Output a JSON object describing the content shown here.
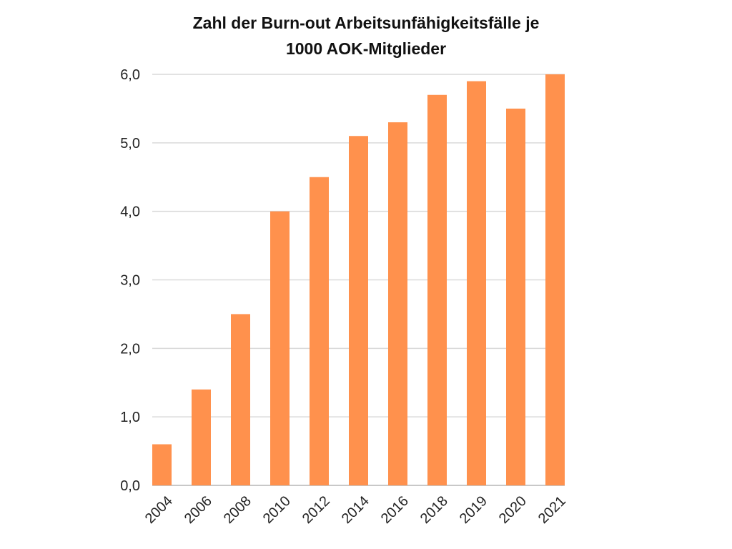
{
  "chart_data": {
    "type": "bar",
    "title_line1": "Zahl der Burn-out Arbeitsunfähigkeitsfälle je",
    "title_line2": "1000 AOK-Mitglieder",
    "categories": [
      "2004",
      "2006",
      "2008",
      "2010",
      "2012",
      "2014",
      "2016",
      "2018",
      "2019",
      "2020",
      "2021"
    ],
    "values": [
      0.6,
      1.4,
      2.5,
      4.0,
      4.5,
      5.1,
      5.3,
      5.7,
      5.9,
      5.5,
      6.0
    ],
    "yticks": [
      "0,0",
      "1,0",
      "2,0",
      "3,0",
      "4,0",
      "5,0",
      "6,0"
    ],
    "ylim": [
      0,
      6
    ],
    "xlabel": "",
    "ylabel": "",
    "grid": true,
    "bar_color": "#FF914D"
  }
}
